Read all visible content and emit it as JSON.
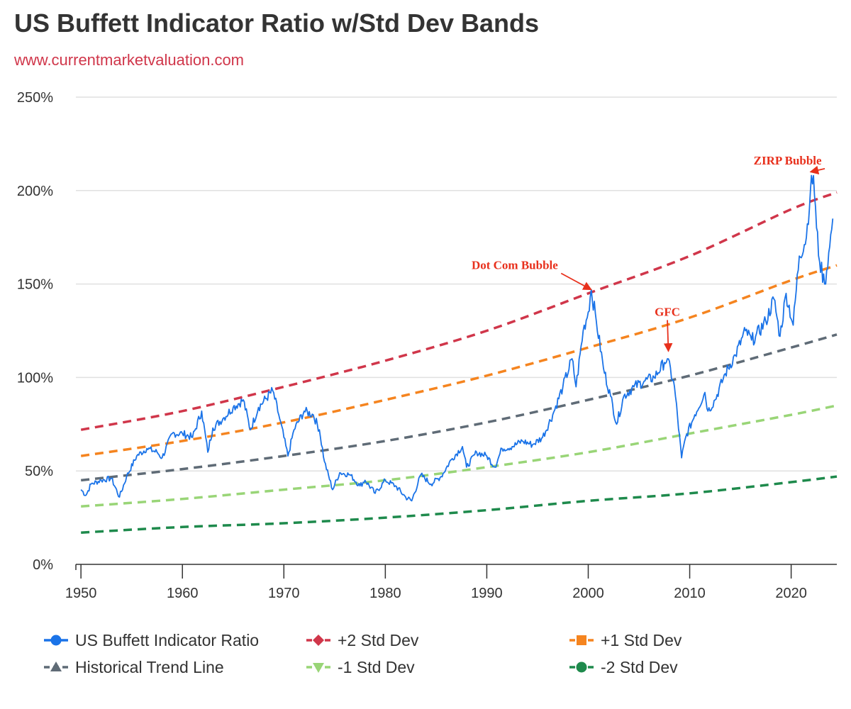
{
  "header": {
    "title": "US Buffett Indicator Ratio w/Std Dev Bands",
    "subtitle": "www.currentmarketvaluation.com"
  },
  "colors": {
    "subtitle": "#d0364a",
    "grid": "#e0e0e0",
    "axis": "#333333",
    "annotation": "#e8301c"
  },
  "chart_data": {
    "type": "line",
    "title": "US Buffett Indicator Ratio w/Std Dev Bands",
    "xlabel": "",
    "ylabel": "",
    "xlim": [
      1949.5,
      2024.5
    ],
    "ylim": [
      0,
      250
    ],
    "x_ticks": [
      1950,
      1960,
      1970,
      1980,
      1990,
      2000,
      2010,
      2020
    ],
    "x_tick_labels": [
      "1950",
      "1960",
      "1970",
      "1980",
      "1990",
      "2000",
      "2010",
      "2020"
    ],
    "y_ticks": [
      0,
      50,
      100,
      150,
      200,
      250
    ],
    "y_tick_labels": [
      "0%",
      "50%",
      "100%",
      "150%",
      "200%",
      "250%"
    ],
    "grid": true,
    "legend_position": "bottom",
    "series": [
      {
        "name": "US Buffett Indicator Ratio",
        "color": "#1a73e8",
        "style": "solid",
        "marker": "circle",
        "x": [
          1950,
          1950.5,
          1951,
          1952,
          1953,
          1953.8,
          1954.5,
          1955.5,
          1956.5,
          1957.5,
          1958,
          1959,
          1960,
          1961,
          1961.9,
          1962.5,
          1963,
          1964,
          1965,
          1966,
          1966.7,
          1967.5,
          1968.9,
          1969.5,
          1970.4,
          1971,
          1972,
          1972.9,
          1973.5,
          1974,
          1974.8,
          1975.5,
          1976.5,
          1977.5,
          1978,
          1979,
          1980,
          1981,
          1982,
          1982.6,
          1983.5,
          1984.5,
          1985.5,
          1986.5,
          1987.6,
          1988,
          1989,
          1990,
          1990.8,
          1991.5,
          1992.5,
          1993.5,
          1994.5,
          1995.5,
          1996.5,
          1997.5,
          1998.4,
          1998.8,
          1999.5,
          2000,
          2000.3,
          2000.8,
          2001.5,
          2002.2,
          2002.8,
          2003.5,
          2004.5,
          2005.5,
          2006.5,
          2007.5,
          2007.8,
          2008.5,
          2009.2,
          2009.6,
          2010.5,
          2011.5,
          2011.8,
          2012.5,
          2013.5,
          2014.5,
          2015.5,
          2016.1,
          2016.5,
          2017.5,
          2018.3,
          2018.9,
          2019.5,
          2020.2,
          2020.8,
          2021.5,
          2021.9,
          2022.2,
          2022.5,
          2022.8,
          2023.3,
          2023.8,
          2024.1
        ],
        "y": [
          40,
          37,
          43,
          45,
          46,
          36,
          47,
          58,
          62,
          60,
          57,
          70,
          70,
          68,
          82,
          60,
          73,
          78,
          84,
          88,
          72,
          84,
          93,
          80,
          58,
          72,
          82,
          80,
          72,
          55,
          40,
          49,
          48,
          42,
          45,
          38,
          45,
          42,
          36,
          34,
          48,
          43,
          47,
          56,
          63,
          52,
          60,
          58,
          52,
          62,
          63,
          66,
          64,
          68,
          80,
          95,
          110,
          95,
          125,
          135,
          147,
          130,
          105,
          90,
          75,
          90,
          95,
          98,
          100,
          108,
          110,
          95,
          57,
          68,
          80,
          92,
          82,
          88,
          102,
          112,
          125,
          120,
          122,
          130,
          142,
          122,
          145,
          128,
          165,
          175,
          200,
          208,
          180,
          162,
          150,
          170,
          185
        ]
      },
      {
        "name": "+2 Std Dev",
        "color": "#d0364a",
        "style": "dashed",
        "marker": "diamond",
        "x": [
          1950,
          1960,
          1970,
          1980,
          1990,
          2000,
          2010,
          2020,
          2024.5
        ],
        "y": [
          72,
          82,
          95,
          109,
          125,
          145,
          165,
          190,
          199
        ]
      },
      {
        "name": "+1 Std Dev",
        "color": "#f5841f",
        "style": "dashed",
        "marker": "square",
        "x": [
          1950,
          1960,
          1970,
          1980,
          1990,
          2000,
          2010,
          2020,
          2024.5
        ],
        "y": [
          58,
          66,
          76,
          88,
          101,
          116,
          132,
          152,
          160
        ]
      },
      {
        "name": "Historical Trend Line",
        "color": "#5f6b76",
        "style": "dashed",
        "marker": "triangle-up",
        "x": [
          1950,
          1960,
          1970,
          1980,
          1990,
          2000,
          2010,
          2020,
          2024.5
        ],
        "y": [
          45,
          51,
          58,
          66,
          76,
          88,
          101,
          116,
          123
        ]
      },
      {
        "name": "-1 Std Dev",
        "color": "#99d577",
        "style": "dashed",
        "marker": "triangle-down",
        "x": [
          1950,
          1960,
          1970,
          1980,
          1990,
          2000,
          2010,
          2020,
          2024.5
        ],
        "y": [
          31,
          35,
          40,
          45,
          52,
          60,
          70,
          80,
          85
        ]
      },
      {
        "name": "-2 Std Dev",
        "color": "#1e8a4c",
        "style": "dashed",
        "marker": "circle",
        "x": [
          1950,
          1960,
          1970,
          1980,
          1990,
          2000,
          2010,
          2020,
          2024.5
        ],
        "y": [
          17,
          20,
          22,
          25,
          29,
          34,
          38,
          44,
          47
        ]
      }
    ],
    "annotations": [
      {
        "text": "Dot Com Bubble",
        "x": 1988.5,
        "y": 158,
        "arrow_to": [
          2000.3,
          147
        ]
      },
      {
        "text": "GFC",
        "x": 2007.8,
        "y": 133,
        "arrow_to": [
          2007.9,
          114
        ]
      },
      {
        "text": "ZIRP Bubble",
        "x": 2016.3,
        "y": 214,
        "arrow_to": [
          2021.9,
          210
        ]
      }
    ]
  },
  "legend": {
    "items": [
      {
        "label": "US Buffett Indicator Ratio",
        "marker": "circle",
        "color": "#1a73e8",
        "style": "solid"
      },
      {
        "label": "+2 Std Dev",
        "marker": "diamond",
        "color": "#d0364a",
        "style": "dashed"
      },
      {
        "label": "+1 Std Dev",
        "marker": "square",
        "color": "#f5841f",
        "style": "dashed"
      },
      {
        "label": "Historical Trend Line",
        "marker": "triangle-up",
        "color": "#5f6b76",
        "style": "dashed"
      },
      {
        "label": "-1 Std Dev",
        "marker": "triangle-down",
        "color": "#99d577",
        "style": "dashed"
      },
      {
        "label": "-2 Std Dev",
        "marker": "circle",
        "color": "#1e8a4c",
        "style": "dashed"
      }
    ]
  }
}
